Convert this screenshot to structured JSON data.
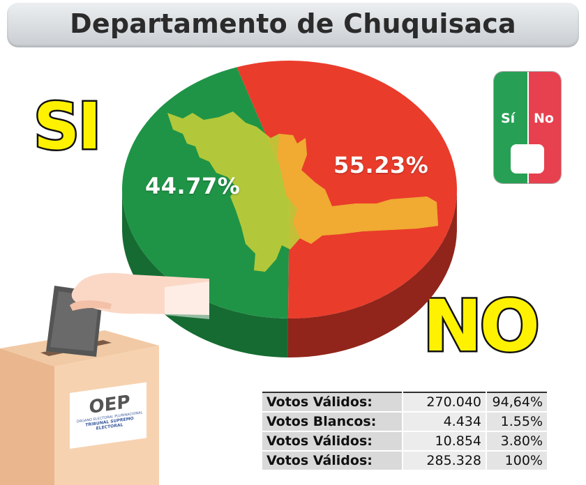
{
  "header": {
    "title": "Departamento de Chuquisaca"
  },
  "labels": {
    "si": "SI",
    "no": "NO"
  },
  "ballot": {
    "si_label": "Sí",
    "no_label": "No"
  },
  "box_text": {
    "logo": "OEP",
    "line1": "ÓRGANO ELECTORAL PLURINACIONAL",
    "line2": "TRIBUNAL SUPREMO ELECTORAL"
  },
  "chart_data": {
    "type": "pie",
    "title": "Departamento de Chuquisaca",
    "slices": [
      {
        "name": "SI",
        "value": 44.77,
        "label": "44.77%",
        "color": "#1f9446"
      },
      {
        "name": "NO",
        "value": 55.23,
        "label": "55.23%",
        "color": "#ea3c2b"
      }
    ]
  },
  "table": {
    "rows": [
      {
        "label": "Votos Válidos:",
        "value": "270.040",
        "percent": "94,64%"
      },
      {
        "label": "Votos Blancos:",
        "value": "4.434",
        "percent": "1.55%"
      },
      {
        "label": "Votos Válidos:",
        "value": "10.854",
        "percent": "3.80%"
      },
      {
        "label": "Votos Válidos:",
        "value": "285.328",
        "percent": "100%"
      }
    ]
  },
  "colors": {
    "si_green": "#1f9446",
    "no_red": "#ea3c2b",
    "label_yellow": "#fff200"
  }
}
